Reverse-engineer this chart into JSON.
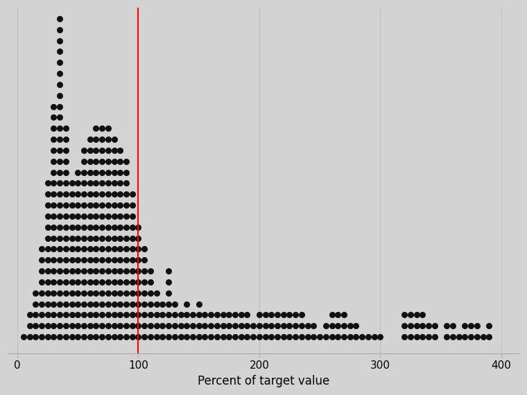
{
  "xlabel": "Percent of target value",
  "xlim": [
    -8,
    415
  ],
  "ylim": [
    -0.5,
    31
  ],
  "xticks": [
    0,
    100,
    200,
    300,
    400
  ],
  "vline_x": 100,
  "vline_color": "red",
  "dot_color": "#111111",
  "background_color": "#d3d3d3",
  "dot_size": 42,
  "grid_color": "#c0c0c0",
  "accurate_bins": {
    "5": 1,
    "10": 3,
    "15": 5,
    "20": 9,
    "25": 15,
    "30": 22,
    "35": 30,
    "40": 20,
    "45": 15,
    "50": 16,
    "55": 18,
    "60": 19,
    "65": 20,
    "70": 20,
    "75": 20,
    "80": 19,
    "85": 18,
    "90": 17,
    "95": 14,
    "100": 11,
    "105": 9,
    "110": 7,
    "115": 5,
    "120": 4,
    "125": 7,
    "130": 4,
    "135": 3,
    "140": 4,
    "145": 3,
    "150": 4,
    "155": 3,
    "160": 3,
    "165": 3,
    "170": 3,
    "175": 3,
    "180": 3,
    "185": 3,
    "190": 3,
    "195": 2,
    "200": 3,
    "205": 3,
    "210": 3,
    "215": 3,
    "220": 3,
    "225": 3,
    "230": 3,
    "235": 3,
    "240": 2,
    "245": 2,
    "250": 1,
    "255": 2,
    "260": 3,
    "265": 3,
    "270": 3,
    "275": 2,
    "280": 2,
    "285": 1,
    "290": 1,
    "295": 1,
    "300": 1,
    "320": 3,
    "325": 3,
    "330": 3,
    "335": 3,
    "340": 2,
    "345": 2,
    "355": 2,
    "360": 2,
    "365": 1,
    "370": 2,
    "375": 2,
    "380": 2,
    "385": 1,
    "390": 2
  }
}
